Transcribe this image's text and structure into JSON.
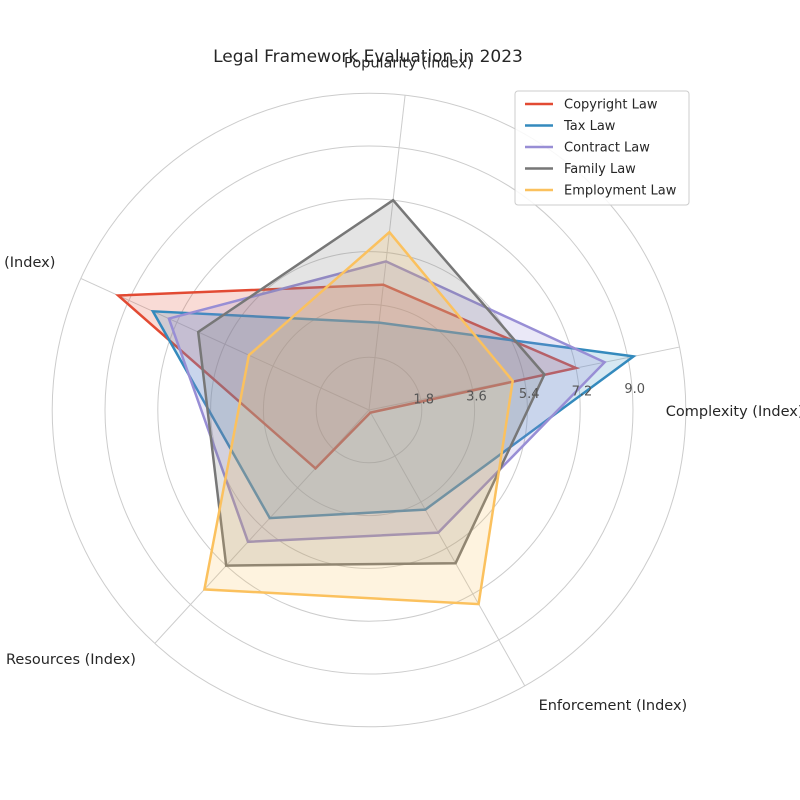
{
  "chart_data": {
    "type": "radar",
    "title": "Legal Framework Evaluation in 2023",
    "axes": [
      "Complexity (Index)",
      "Popularity (Index)",
      "Precedent (Index)",
      "Resources (Index)",
      "Enforcement (Index)"
    ],
    "radial_ticks": [
      1.8,
      3.6,
      5.4,
      7.2,
      9.0
    ],
    "radial_tick_labels": [
      "1.8",
      "3.6",
      "5.4",
      "7.2",
      "9.0"
    ],
    "rlim": [
      0,
      9.0
    ],
    "grid": true,
    "legend_position": "top-right",
    "series": [
      {
        "name": "Copyright Law",
        "color": "#E24A33",
        "values": [
          7.2,
          4.3,
          9.4,
          2.7,
          0.1
        ]
      },
      {
        "name": "Tax Law",
        "color": "#348ABD",
        "values": [
          9.2,
          3.0,
          8.1,
          5.0,
          3.9
        ]
      },
      {
        "name": "Contract Law",
        "color": "#988ED5",
        "values": [
          8.2,
          5.1,
          7.5,
          6.1,
          4.8
        ]
      },
      {
        "name": "Family Law",
        "color": "#777777",
        "values": [
          6.1,
          7.2,
          6.4,
          7.2,
          6.0
        ]
      },
      {
        "name": "Employment Law",
        "color": "#FBC15E",
        "values": [
          5.0,
          6.1,
          4.5,
          8.3,
          7.6
        ]
      }
    ]
  }
}
